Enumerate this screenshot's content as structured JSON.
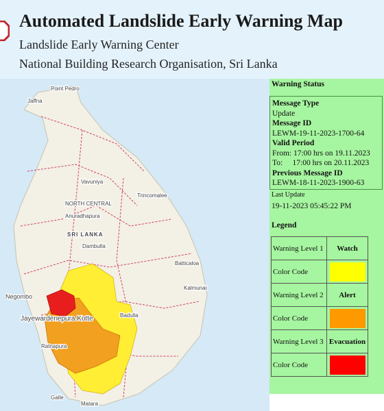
{
  "header": {
    "title": "Automated Landslide Early Warning Map",
    "subtitle": "Landslide Early Warning Center",
    "organisation": "National Building Research Organisation, Sri Lanka"
  },
  "map": {
    "labels": [
      "Point Pedro",
      "Jaffna",
      "Vavuniya",
      "Trincomalee",
      "NORTH CENTRAL",
      "Anuradhapura",
      "SRI LANKA",
      "Dambulla",
      "Batticaloa",
      "Kalmunai",
      "Negombo",
      "Jayewardenepura Kotte",
      "Ratnapura",
      "Badulla",
      "Galle",
      "Matara"
    ]
  },
  "warning_status": {
    "heading": "Warning Status",
    "message_type_label": "Message Type",
    "message_type": "Update",
    "message_id_label": "Message ID",
    "message_id": "LEWM-19-11-2023-1700-64",
    "valid_period_label": "Valid Period",
    "valid_from": "From: 17:00 hrs on 19.11.2023",
    "valid_to": "To:     17:00 hrs on 20.11.2023",
    "previous_message_id_label": "Previous Message ID",
    "previous_message_id": "LEWM-18-11-2023-1900-63",
    "last_update_label": "Last Update",
    "last_update": "19-11-2023 05:45:22 PM"
  },
  "legend": {
    "title": "Legend",
    "rows": [
      {
        "level": "Warning Level 1",
        "name": "Watch",
        "color_label": "Color Code",
        "color": "#ffff00"
      },
      {
        "level": "Warning Level 2",
        "name": "Alert",
        "color_label": "Color Code",
        "color": "#ff9900"
      },
      {
        "level": "Warning Level 3",
        "name": "Evacuation",
        "color_label": "Color Code",
        "color": "#ff0000"
      }
    ]
  }
}
